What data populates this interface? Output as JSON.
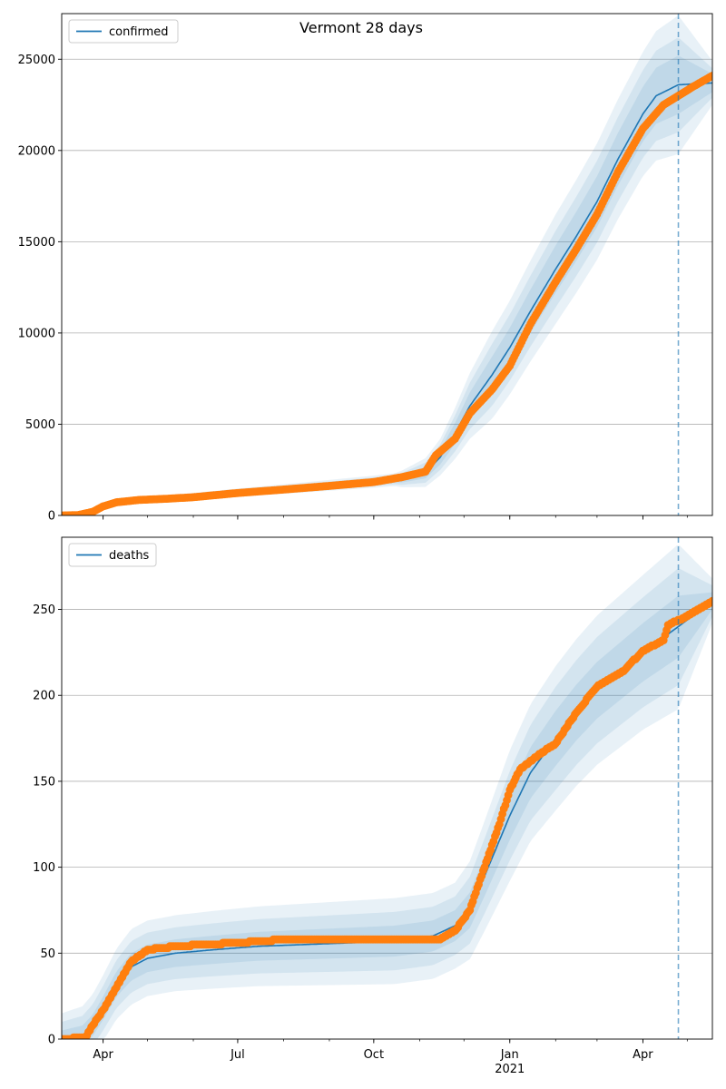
{
  "figure": {
    "title": "Vermont 28 days"
  },
  "chart_data": [
    {
      "type": "line",
      "panel": "top",
      "legend": {
        "label": "confirmed",
        "placement": "upper-left"
      },
      "x_ticks_major": [
        "Apr",
        "Jul",
        "Oct",
        "Jan",
        "Apr"
      ],
      "x_ticks_major_dates": [
        "2020-04-01",
        "2020-07-01",
        "2020-10-01",
        "2021-01-01",
        "2021-04-01"
      ],
      "x_year_label": "2021",
      "xlim": [
        "2020-03-04",
        "2021-05-18"
      ],
      "forecast_start": "2021-04-25",
      "ylim": [
        0,
        27500
      ],
      "yticks": [
        0,
        5000,
        10000,
        15000,
        20000,
        25000
      ],
      "grid": "horizontal",
      "colors": {
        "model": "#1f77b4",
        "observed": "#ff7f0e",
        "band": "#1f77b4"
      },
      "model_line": [
        [
          "2020-03-04",
          0
        ],
        [
          "2020-03-15",
          30
        ],
        [
          "2020-03-25",
          250
        ],
        [
          "2020-04-01",
          550
        ],
        [
          "2020-04-10",
          750
        ],
        [
          "2020-04-25",
          870
        ],
        [
          "2020-05-15",
          950
        ],
        [
          "2020-06-01",
          1050
        ],
        [
          "2020-07-01",
          1250
        ],
        [
          "2020-08-01",
          1450
        ],
        [
          "2020-09-01",
          1650
        ],
        [
          "2020-10-01",
          1850
        ],
        [
          "2020-10-20",
          2000
        ],
        [
          "2020-11-05",
          2350
        ],
        [
          "2020-11-15",
          3200
        ],
        [
          "2020-11-25",
          4500
        ],
        [
          "2020-12-05",
          6000
        ],
        [
          "2020-12-20",
          7700
        ],
        [
          "2021-01-01",
          9200
        ],
        [
          "2021-01-15",
          11200
        ],
        [
          "2021-02-01",
          13500
        ],
        [
          "2021-02-15",
          15300
        ],
        [
          "2021-03-01",
          17200
        ],
        [
          "2021-03-15",
          19500
        ],
        [
          "2021-04-01",
          22000
        ],
        [
          "2021-04-10",
          23000
        ],
        [
          "2021-04-25",
          23600
        ],
        [
          "2021-05-18",
          23700
        ]
      ],
      "band_widths": [
        [
          [
            "2020-03-04",
            80
          ],
          [
            "2020-10-15",
            350
          ],
          [
            "2020-11-15",
            1000
          ],
          [
            "2020-12-20",
            2400
          ],
          [
            "2021-02-01",
            3000
          ],
          [
            "2021-04-01",
            3400
          ],
          [
            "2021-04-25",
            3800
          ],
          [
            "2021-05-18",
            1200
          ]
        ],
        [
          [
            "2020-03-04",
            50
          ],
          [
            "2020-10-15",
            250
          ],
          [
            "2020-11-15",
            700
          ],
          [
            "2020-12-20",
            1700
          ],
          [
            "2021-02-01",
            2100
          ],
          [
            "2021-04-01",
            2400
          ],
          [
            "2021-04-25",
            2600
          ],
          [
            "2021-05-18",
            800
          ]
        ],
        [
          [
            "2020-03-04",
            30
          ],
          [
            "2020-10-15",
            150
          ],
          [
            "2020-11-15",
            400
          ],
          [
            "2020-12-20",
            1000
          ],
          [
            "2021-02-01",
            1300
          ],
          [
            "2021-04-01",
            1500
          ],
          [
            "2021-04-25",
            1600
          ],
          [
            "2021-05-18",
            500
          ]
        ]
      ],
      "observed_series": {
        "name": "confirmed observed",
        "start": "2020-03-04",
        "end": "2021-05-18",
        "keypoints": [
          [
            "2020-03-04",
            0
          ],
          [
            "2020-03-15",
            20
          ],
          [
            "2020-03-25",
            200
          ],
          [
            "2020-04-01",
            500
          ],
          [
            "2020-04-10",
            720
          ],
          [
            "2020-04-25",
            850
          ],
          [
            "2020-05-15",
            920
          ],
          [
            "2020-06-01",
            1000
          ],
          [
            "2020-07-01",
            1230
          ],
          [
            "2020-08-01",
            1420
          ],
          [
            "2020-09-01",
            1620
          ],
          [
            "2020-10-01",
            1830
          ],
          [
            "2020-10-20",
            2100
          ],
          [
            "2020-11-05",
            2400
          ],
          [
            "2020-11-12",
            3300
          ],
          [
            "2020-11-25",
            4200
          ],
          [
            "2020-12-05",
            5600
          ],
          [
            "2020-12-20",
            6900
          ],
          [
            "2021-01-01",
            8200
          ],
          [
            "2021-01-15",
            10500
          ],
          [
            "2021-02-01",
            12800
          ],
          [
            "2021-02-15",
            14600
          ],
          [
            "2021-03-01",
            16500
          ],
          [
            "2021-03-15",
            18800
          ],
          [
            "2021-04-01",
            21200
          ],
          [
            "2021-04-15",
            22500
          ],
          [
            "2021-04-25",
            23000
          ],
          [
            "2021-05-05",
            23500
          ],
          [
            "2021-05-18",
            24100
          ]
        ]
      }
    },
    {
      "type": "line",
      "panel": "bottom",
      "legend": {
        "label": "deaths",
        "placement": "upper-left"
      },
      "x_ticks_major": [
        "Apr",
        "Jul",
        "Oct",
        "Jan",
        "Apr"
      ],
      "x_ticks_major_dates": [
        "2020-04-01",
        "2020-07-01",
        "2020-10-01",
        "2021-01-01",
        "2021-04-01"
      ],
      "x_year_label": "2021",
      "xlim": [
        "2020-03-04",
        "2021-05-18"
      ],
      "forecast_start": "2021-04-25",
      "ylim": [
        0,
        292
      ],
      "yticks": [
        0,
        50,
        100,
        150,
        200,
        250
      ],
      "grid": "horizontal",
      "colors": {
        "model": "#1f77b4",
        "observed": "#ff7f0e",
        "band": "#1f77b4"
      },
      "model_line": [
        [
          "2020-03-04",
          0
        ],
        [
          "2020-03-18",
          2
        ],
        [
          "2020-03-25",
          8
        ],
        [
          "2020-04-01",
          18
        ],
        [
          "2020-04-10",
          32
        ],
        [
          "2020-04-20",
          42
        ],
        [
          "2020-05-01",
          47
        ],
        [
          "2020-05-20",
          50
        ],
        [
          "2020-06-15",
          52
        ],
        [
          "2020-07-15",
          54
        ],
        [
          "2020-08-15",
          55
        ],
        [
          "2020-09-15",
          56
        ],
        [
          "2020-10-15",
          57
        ],
        [
          "2020-11-10",
          60
        ],
        [
          "2020-11-25",
          66
        ],
        [
          "2020-12-05",
          75
        ],
        [
          "2020-12-15",
          95
        ],
        [
          "2021-01-01",
          130
        ],
        [
          "2021-01-15",
          155
        ],
        [
          "2021-02-01",
          175
        ],
        [
          "2021-02-15",
          190
        ],
        [
          "2021-03-01",
          203
        ],
        [
          "2021-04-01",
          225
        ],
        [
          "2021-04-25",
          240
        ],
        [
          "2021-05-18",
          255
        ]
      ],
      "band_widths": [
        [
          [
            "2020-03-04",
            15
          ],
          [
            "2020-04-20",
            22
          ],
          [
            "2020-05-15",
            22
          ],
          [
            "2020-10-15",
            25
          ],
          [
            "2020-11-25",
            25
          ],
          [
            "2021-01-01",
            38
          ],
          [
            "2021-02-01",
            42
          ],
          [
            "2021-04-01",
            45
          ],
          [
            "2021-04-25",
            48
          ],
          [
            "2021-05-18",
            13
          ]
        ],
        [
          [
            "2020-03-04",
            10
          ],
          [
            "2020-04-20",
            15
          ],
          [
            "2020-05-15",
            15
          ],
          [
            "2020-10-15",
            17
          ],
          [
            "2020-11-25",
            17
          ],
          [
            "2021-01-01",
            26
          ],
          [
            "2021-02-01",
            30
          ],
          [
            "2021-04-01",
            32
          ],
          [
            "2021-04-25",
            34
          ],
          [
            "2021-05-18",
            9
          ]
        ],
        [
          [
            "2020-03-04",
            5
          ],
          [
            "2020-04-20",
            8
          ],
          [
            "2020-05-15",
            8
          ],
          [
            "2020-10-15",
            9
          ],
          [
            "2020-11-25",
            9
          ],
          [
            "2021-01-01",
            14
          ],
          [
            "2021-02-01",
            16
          ],
          [
            "2021-04-01",
            17
          ],
          [
            "2021-04-25",
            18
          ],
          [
            "2021-05-18",
            5
          ]
        ]
      ],
      "observed_series": {
        "name": "deaths observed",
        "start": "2020-03-04",
        "end": "2021-05-18",
        "keypoints": [
          [
            "2020-03-04",
            0
          ],
          [
            "2020-03-20",
            1
          ],
          [
            "2020-03-25",
            8
          ],
          [
            "2020-04-01",
            17
          ],
          [
            "2020-04-10",
            30
          ],
          [
            "2020-04-20",
            45
          ],
          [
            "2020-05-01",
            52
          ],
          [
            "2020-05-20",
            54
          ],
          [
            "2020-06-10",
            55
          ],
          [
            "2020-07-01",
            56
          ],
          [
            "2020-08-01",
            58
          ],
          [
            "2020-11-15",
            58
          ],
          [
            "2020-11-25",
            63
          ],
          [
            "2020-12-05",
            75
          ],
          [
            "2020-12-15",
            100
          ],
          [
            "2020-12-25",
            125
          ],
          [
            "2021-01-01",
            145
          ],
          [
            "2021-01-08",
            157
          ],
          [
            "2021-01-20",
            165
          ],
          [
            "2021-02-01",
            172
          ],
          [
            "2021-02-15",
            190
          ],
          [
            "2021-03-01",
            205
          ],
          [
            "2021-03-20",
            215
          ],
          [
            "2021-04-01",
            226
          ],
          [
            "2021-04-15",
            232
          ],
          [
            "2021-04-18",
            241
          ],
          [
            "2021-05-01",
            246
          ],
          [
            "2021-05-18",
            255
          ]
        ]
      }
    }
  ]
}
